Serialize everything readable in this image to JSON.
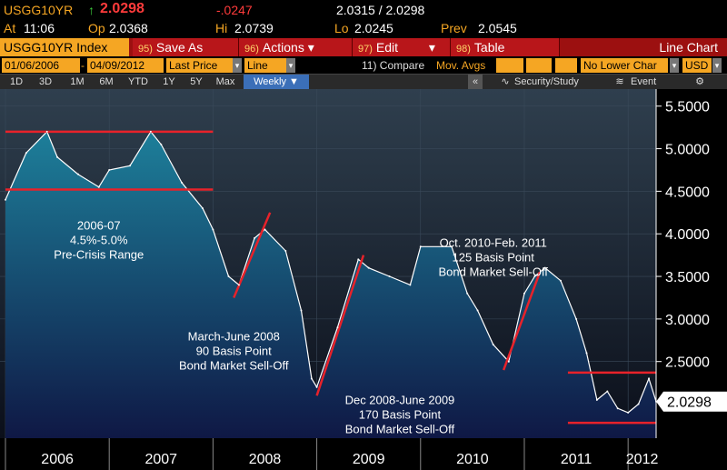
{
  "quote": {
    "ticker": "USGG10YR",
    "arrow": "↑",
    "last": "2.0298",
    "change": "-.0247",
    "bid_ask": "2.0315 / 2.0298",
    "at_label": "At",
    "time": "11:06",
    "open_label": "Op",
    "open": "2.0368",
    "hi_label": "Hi",
    "hi": "2.0739",
    "lo_label": "Lo",
    "lo": "2.0245",
    "prev_label": "Prev",
    "prev": "2.0545"
  },
  "commands": {
    "security": "USGG10YR Index",
    "save_num": "95)",
    "save": "Save As",
    "actions_num": "96)",
    "actions": "Actions",
    "edit_num": "97)",
    "edit": "Edit",
    "table_num": "98)",
    "table": "Table",
    "mode": "Line Chart"
  },
  "params": {
    "start_date": "01/06/2006",
    "end_date": "04/09/2012",
    "field": "Last Price",
    "style": "Line",
    "compare": "11) Compare",
    "mov_avgs": "Mov. Avgs",
    "lower": "No Lower Char",
    "currency": "USD"
  },
  "toolbar": {
    "ranges": [
      "1D",
      "3D",
      "1M",
      "6M",
      "YTD",
      "1Y",
      "5Y",
      "Max"
    ],
    "period": "Weekly ▼",
    "collapse": "«",
    "security_study": "Security/Study",
    "event": "Event",
    "gear": "⚙"
  },
  "colors": {
    "line": "#ffffff",
    "area_top": "#1d7f9a",
    "area_bottom": "#0f1845",
    "annotation": "#e8222a",
    "bg_top": "#2f3f4e",
    "bg_bottom": "#0b0f1a"
  },
  "chart_data": {
    "type": "area",
    "title": "",
    "xlabel": "",
    "ylabel": "",
    "ylim": [
      1.6,
      5.7
    ],
    "yticks": [
      "5.5000",
      "5.0000",
      "4.5000",
      "4.0000",
      "3.5000",
      "3.0000",
      "2.5000"
    ],
    "xticks": [
      "2006",
      "2007",
      "2008",
      "2009",
      "2010",
      "2011",
      "2012"
    ],
    "last_label": "2.0298",
    "x": [
      2006.0,
      2006.2,
      2006.4,
      2006.5,
      2006.7,
      2006.9,
      2007.0,
      2007.2,
      2007.4,
      2007.5,
      2007.7,
      2007.9,
      2008.0,
      2008.15,
      2008.25,
      2008.4,
      2008.5,
      2008.7,
      2008.85,
      2008.95,
      2009.0,
      2009.2,
      2009.4,
      2009.5,
      2009.7,
      2009.9,
      2010.0,
      2010.3,
      2010.45,
      2010.55,
      2010.7,
      2010.85,
      2011.0,
      2011.1,
      2011.2,
      2011.35,
      2011.5,
      2011.6,
      2011.7,
      2011.8,
      2011.9,
      2012.0,
      2012.1,
      2012.2,
      2012.27
    ],
    "values": [
      4.4,
      4.95,
      5.2,
      4.9,
      4.7,
      4.55,
      4.75,
      4.8,
      5.2,
      5.05,
      4.6,
      4.3,
      4.05,
      3.5,
      3.4,
      3.95,
      4.05,
      3.8,
      3.1,
      2.3,
      2.2,
      2.9,
      3.7,
      3.6,
      3.5,
      3.4,
      3.85,
      3.85,
      3.3,
      3.1,
      2.7,
      2.5,
      3.3,
      3.5,
      3.6,
      3.45,
      3.0,
      2.6,
      2.05,
      2.15,
      1.95,
      1.9,
      2.0,
      2.3,
      2.03
    ],
    "annotations": [
      {
        "text": [
          "2006-07",
          "4.5%-5.0%",
          "Pre-Crisis Range"
        ],
        "x": 2006.9,
        "y": 4.05
      },
      {
        "text": [
          "March-June 2008",
          "90 Basis Point",
          "Bond Market Sell-Off"
        ],
        "x": 2008.2,
        "y": 2.75
      },
      {
        "text": [
          "Dec 2008-June 2009",
          "170 Basis Point",
          "Bond Market Sell-Off"
        ],
        "x": 2009.8,
        "y": 2.0
      },
      {
        "text": [
          "Oct. 2010-Feb. 2011",
          "125 Basis Point",
          "Bond Market Sell-Off"
        ],
        "x": 2010.7,
        "y": 3.85
      }
    ],
    "range_lines": [
      {
        "x1": 2006.0,
        "x2": 2008.0,
        "y": 5.2
      },
      {
        "x1": 2006.0,
        "x2": 2008.0,
        "y": 4.52
      },
      {
        "x1": 2011.42,
        "x2": 2012.27,
        "y": 2.37
      },
      {
        "x1": 2011.42,
        "x2": 2012.27,
        "y": 1.78
      }
    ],
    "trend_lines": [
      {
        "x1": 2008.2,
        "y1": 3.25,
        "x2": 2008.55,
        "y2": 4.25
      },
      {
        "x1": 2009.0,
        "y1": 2.1,
        "x2": 2009.45,
        "y2": 3.75
      },
      {
        "x1": 2010.8,
        "y1": 2.4,
        "x2": 2011.15,
        "y2": 3.55
      }
    ]
  }
}
